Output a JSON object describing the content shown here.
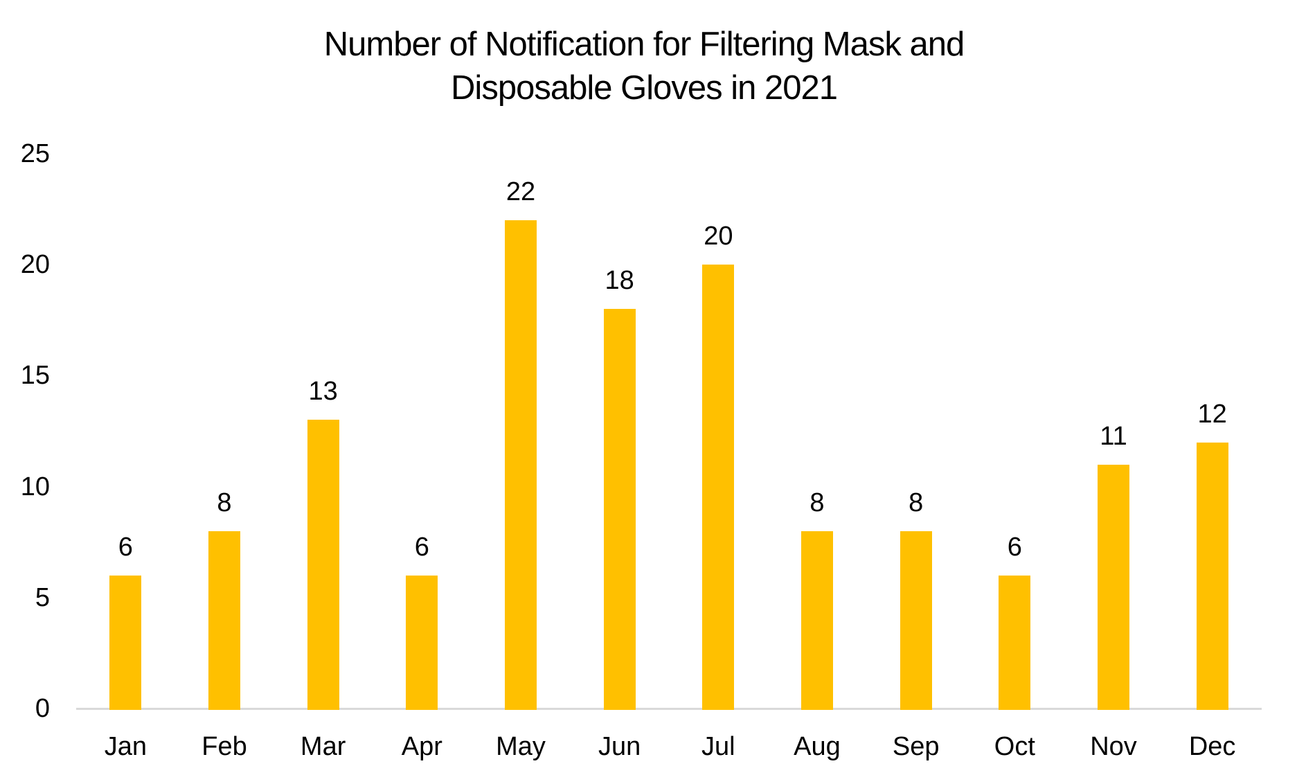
{
  "chart_data": {
    "type": "bar",
    "title": "Number of Notification for Filtering Mask and Disposable Gloves in 2021",
    "title_lines": [
      "Number of Notification for Filtering Mask and",
      "Disposable Gloves in 2021"
    ],
    "categories": [
      "Jan",
      "Feb",
      "Mar",
      "Apr",
      "May",
      "Jun",
      "Jul",
      "Aug",
      "Sep",
      "Oct",
      "Nov",
      "Dec"
    ],
    "values": [
      6,
      8,
      13,
      6,
      22,
      18,
      20,
      8,
      8,
      6,
      11,
      12
    ],
    "y_ticks": [
      0,
      5,
      10,
      15,
      20,
      25
    ],
    "ylim": [
      0,
      25
    ],
    "xlabel": "",
    "ylabel": "",
    "grid": false,
    "legend": "none",
    "data_labels_shown": true,
    "colors": {
      "bar": "#FFC000",
      "axis_line": "#D9D9D9",
      "text": "#000000",
      "background": "#FFFFFF"
    }
  }
}
